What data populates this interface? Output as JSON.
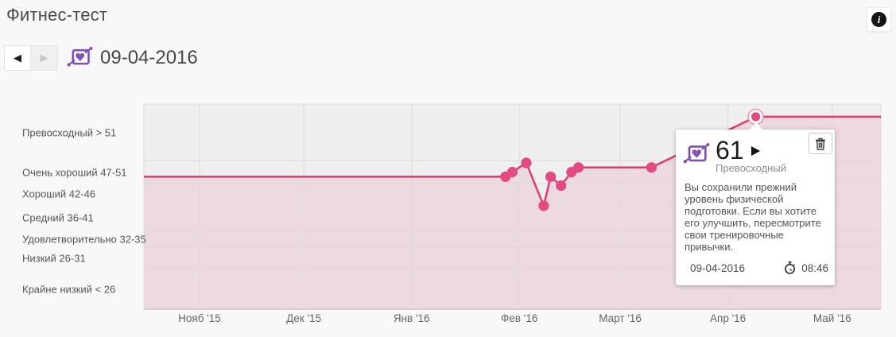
{
  "page": {
    "title": "Фитнес-тест"
  },
  "header": {
    "info_glyph": "i",
    "prev_glyph": "◀",
    "next_glyph": "▶",
    "prev_enabled": true,
    "next_enabled": false,
    "date": "09-04-2016"
  },
  "chart_data": {
    "type": "line",
    "title": "Фитнес-тест",
    "x_domain": [
      "2015-10-16",
      "2016-05-15"
    ],
    "x_ticks": [
      {
        "label": "Нояб '15",
        "date": "2015-11-01"
      },
      {
        "label": "Дек '15",
        "date": "2015-12-01"
      },
      {
        "label": "Янв '16",
        "date": "2016-01-01"
      },
      {
        "label": "Фев '16",
        "date": "2016-02-01"
      },
      {
        "label": "Март '16",
        "date": "2016-03-01"
      },
      {
        "label": "Апр '16",
        "date": "2016-04-01"
      },
      {
        "label": "Май '16",
        "date": "2016-05-01"
      }
    ],
    "levels": [
      {
        "label": "Превосходный > 51",
        "min": 52
      },
      {
        "label": "Очень хороший 47-51",
        "min": 47,
        "max": 51
      },
      {
        "label": "Хороший 42-46",
        "min": 42,
        "max": 46
      },
      {
        "label": "Средний 36-41",
        "min": 36,
        "max": 41
      },
      {
        "label": "Удовлетворительно 32-35",
        "min": 32,
        "max": 35
      },
      {
        "label": "Низкий 26-31",
        "min": 26,
        "max": 31
      },
      {
        "label": "Крайне низкий < 26",
        "max": 25
      }
    ],
    "series": [
      {
        "name": "Фитнес-тест",
        "color": "#dc4077",
        "points": [
          {
            "date": "2015-10-16",
            "value": 48,
            "edge": true
          },
          {
            "date": "2016-01-28",
            "value": 48
          },
          {
            "date": "2016-01-30",
            "value": 49
          },
          {
            "date": "2016-02-03",
            "value": 51
          },
          {
            "date": "2016-02-08",
            "value": 41
          },
          {
            "date": "2016-02-10",
            "value": 48
          },
          {
            "date": "2016-02-13",
            "value": 46
          },
          {
            "date": "2016-02-16",
            "value": 49
          },
          {
            "date": "2016-02-18",
            "value": 50
          },
          {
            "date": "2016-03-10",
            "value": 50
          },
          {
            "date": "2016-04-09",
            "value": 61,
            "selected": true
          },
          {
            "date": "2016-05-15",
            "value": 61,
            "edge": true
          }
        ]
      }
    ],
    "legend": "none",
    "grid": true
  },
  "tooltip": {
    "value": "61",
    "level": "Превосходный",
    "message": "Вы сохранили прежний уровень физической подготовки. Если вы хотите его улучшить, пересмотрите свои тренировочные привычки.",
    "date": "09-04-2016",
    "time": "08:46"
  },
  "colors": {
    "line": "#dc4077",
    "point": "#e14b81",
    "area_opacity": "0.12",
    "selected_ring": "#ec93b1",
    "purple": "#7e4fb5",
    "plot_bg": "#f0eff0",
    "grid": "#dbdbdb",
    "axis": "#c6c6c6"
  }
}
